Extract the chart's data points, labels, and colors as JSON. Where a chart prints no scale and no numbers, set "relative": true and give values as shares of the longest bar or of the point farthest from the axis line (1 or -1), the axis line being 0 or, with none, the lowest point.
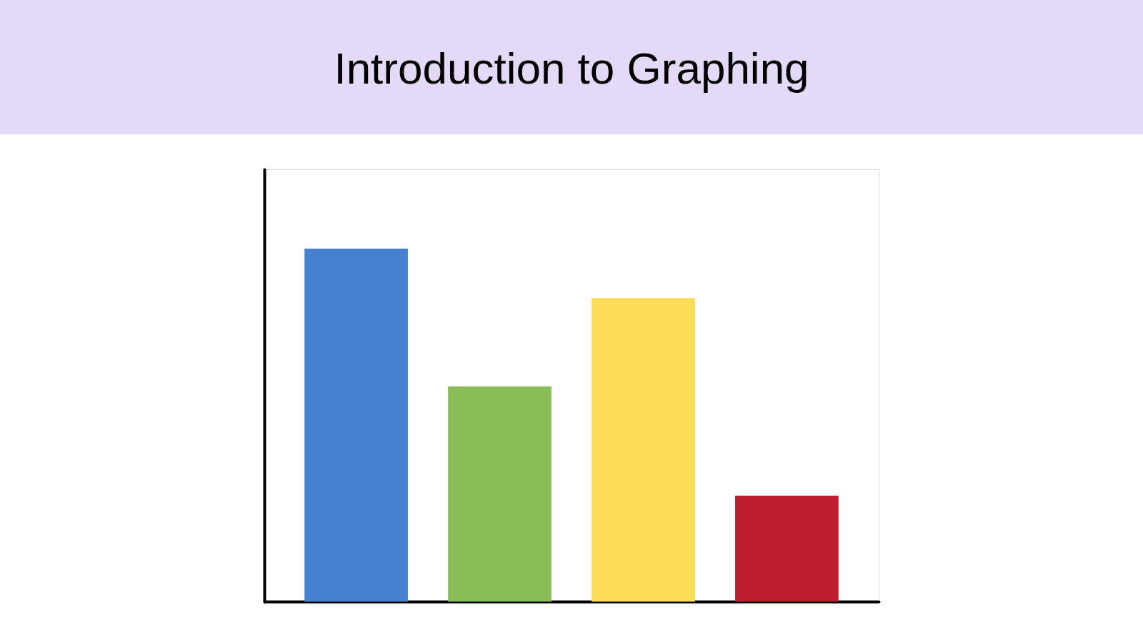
{
  "chart_data": {
    "type": "bar",
    "title": "Introduction to Graphing",
    "relative": true,
    "categories": [
      null,
      null,
      null,
      null
    ],
    "values": [
      1,
      0.61,
      0.86,
      0.3
    ],
    "colors": [
      "#4680d0",
      "#8abd57",
      "#fedd5a",
      "#bd1e2f"
    ],
    "grid": false
  }
}
